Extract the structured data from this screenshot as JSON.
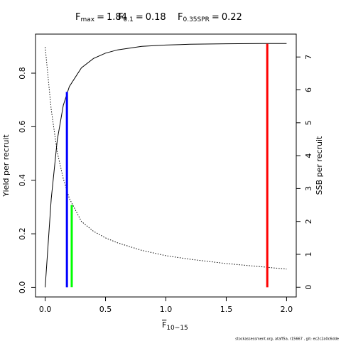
{
  "chart_data": {
    "type": "line",
    "title_items": [
      {
        "symbol": "F",
        "subscript": "max",
        "relation": "=",
        "value": 1.84,
        "height": 0.91,
        "axis": "y",
        "color": "#ff0000"
      },
      {
        "symbol": "F",
        "subscript": "0.1",
        "relation": "=",
        "value": 0.18,
        "height": 0.73,
        "axis": "y",
        "color": "#0000ff"
      },
      {
        "symbol": "F",
        "subscript": "0.35SPR",
        "relation": "=",
        "value": 0.22,
        "height": 2.5,
        "axis": "y2",
        "color": "#00ff00"
      }
    ],
    "xlabel": {
      "text": "F",
      "subscript": "10−15"
    },
    "ylabel": "Yield per recruit",
    "y2label": "SSB per recruit",
    "credit": "stockassessment.org, ataff5a, r15667 , git: ec2c2a0c6dde",
    "x": [
      0,
      0.05,
      0.1,
      0.15,
      0.2,
      0.3,
      0.4,
      0.5,
      0.6,
      0.8,
      1.0,
      1.2,
      1.5,
      1.8,
      2.0
    ],
    "series": [
      {
        "name": "Yield per recruit",
        "color": "#000000",
        "dash": false,
        "axis": "y",
        "values": [
          0,
          0.33,
          0.55,
          0.68,
          0.75,
          0.82,
          0.855,
          0.875,
          0.887,
          0.9,
          0.905,
          0.908,
          0.91,
          0.911,
          0.911
        ]
      },
      {
        "name": "SSB per recruit",
        "color": "#000000",
        "dash": true,
        "axis": "y2",
        "values": [
          7.3,
          5.4,
          4.1,
          3.3,
          2.7,
          2.0,
          1.7,
          1.5,
          1.35,
          1.12,
          0.96,
          0.85,
          0.72,
          0.62,
          0.55
        ]
      }
    ],
    "xlim": [
      -0.08,
      2.08
    ],
    "xticks": [
      {
        "value": 0,
        "label": "0.0"
      },
      0.5,
      {
        "value": 1,
        "label": "1.0"
      },
      1.5,
      {
        "value": 2,
        "label": "2.0"
      }
    ],
    "ylim": [
      -0.036,
      0.946
    ],
    "yticks": [
      {
        "value": 0,
        "label": "0.0"
      },
      0.2,
      0.4,
      0.6,
      0.8
    ],
    "y2lim": [
      -0.296,
      7.696
    ],
    "y2ticks": [
      0,
      1,
      2,
      3,
      4,
      5,
      6,
      7
    ]
  }
}
